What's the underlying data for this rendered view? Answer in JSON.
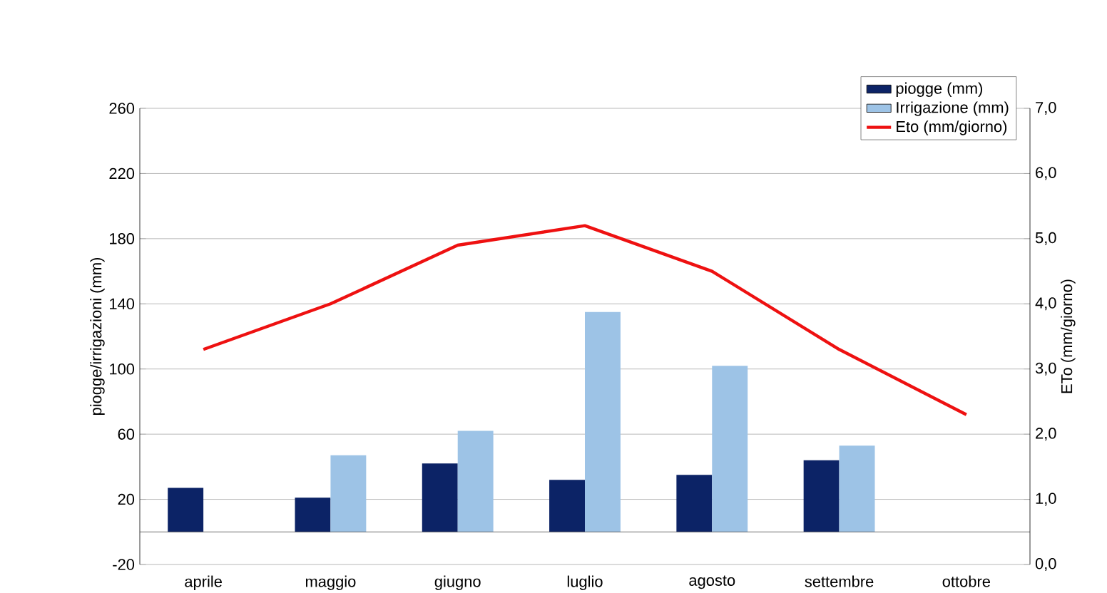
{
  "chart_data": {
    "type": "bar",
    "ylabel": "piogge/irrigazioni (mm)",
    "y2label": "ETo (mm/giorno)",
    "categories": [
      "aprile",
      "maggio",
      "giugno",
      "luglio",
      "agosto",
      "settembre",
      "ottobre"
    ],
    "series": [
      {
        "name": "piogge (mm)",
        "color": "#0c2366",
        "values": [
          27,
          21,
          42,
          32,
          35,
          44,
          null
        ]
      },
      {
        "name": "Irrigazione (mm)",
        "color": "#9dc3e6",
        "values": [
          null,
          47,
          62,
          135,
          102,
          53,
          null
        ]
      },
      {
        "name": "Eto (mm/giorno)",
        "type": "line",
        "axis": "y2",
        "color": "#ee1111",
        "values": [
          3.3,
          4.0,
          4.9,
          5.2,
          4.5,
          3.3,
          2.3
        ]
      }
    ],
    "ylim": [
      -20,
      260
    ],
    "yticks": [
      -20,
      20,
      60,
      100,
      140,
      180,
      220,
      260
    ],
    "y2lim": [
      0,
      7
    ],
    "y2ticks": [
      {
        "value": 0,
        "label": "0,0"
      },
      {
        "value": 1,
        "label": "1,0"
      },
      {
        "value": 2,
        "label": "2,0"
      },
      {
        "value": 3,
        "label": "3,0"
      },
      {
        "value": 4,
        "label": "4,0"
      },
      {
        "value": 5,
        "label": "5,0"
      },
      {
        "value": 6,
        "label": "6,0"
      },
      {
        "value": 7,
        "label": "7,0"
      }
    ],
    "grid": "y",
    "legend": "top right",
    "marker": "none"
  }
}
